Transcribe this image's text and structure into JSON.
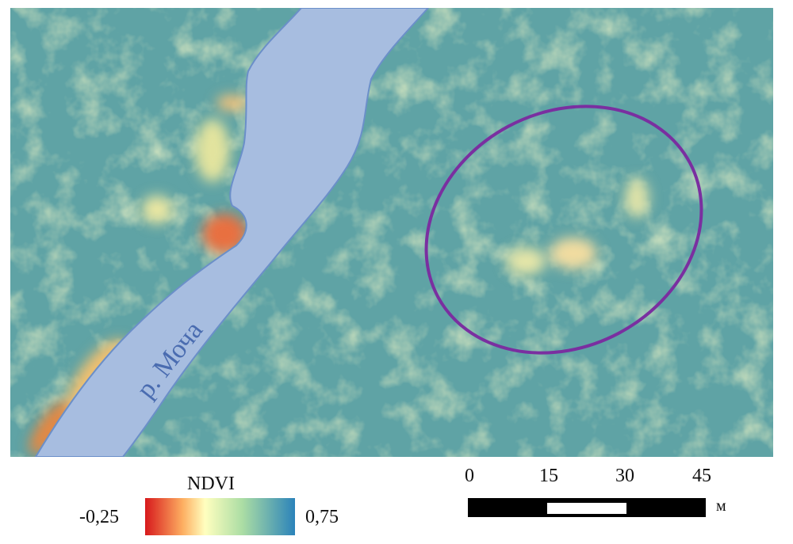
{
  "map": {
    "river_label": "р. Моча",
    "colors": {
      "river": "#a7bde0",
      "river_edge": "#6b8fc9",
      "ellipse": "#7a2fa0",
      "label": "#4a6cb0"
    }
  },
  "legend": {
    "title": "NDVI",
    "min_label": "-0,25",
    "max_label": "0,75",
    "colors": [
      "#d7191c",
      "#fdae61",
      "#ffffbf",
      "#abdda4",
      "#2b83ba"
    ]
  },
  "scale_bar": {
    "ticks": [
      "0",
      "15",
      "30",
      "45"
    ],
    "unit": "м"
  }
}
